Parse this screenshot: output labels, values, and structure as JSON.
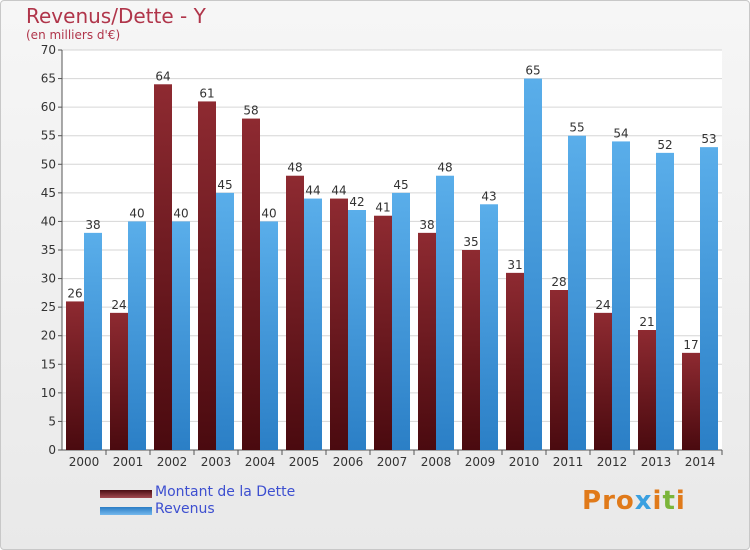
{
  "title": "Revenus/Dette - Y",
  "subtitle": "(en milliers d'€)",
  "legend": [
    {
      "label": "Montant de la Dette",
      "color": "#7a1f25"
    },
    {
      "label": "Revenus",
      "color": "#4a9fe0"
    }
  ],
  "logo": {
    "text": "Proxiti",
    "colors": [
      "#e07a1a",
      "#e07a1a",
      "#e07a1a",
      "#3aa0e0",
      "#e07a1a",
      "#7bb53a",
      "#e07a1a"
    ]
  },
  "chart_data": {
    "type": "bar",
    "title": "Revenus/Dette - Y",
    "subtitle": "(en milliers d'€)",
    "categories": [
      "2000",
      "2001",
      "2002",
      "2003",
      "2004",
      "2005",
      "2006",
      "2007",
      "2008",
      "2009",
      "2010",
      "2011",
      "2012",
      "2013",
      "2014"
    ],
    "series": [
      {
        "name": "Montant de la Dette",
        "color": "#7a1f25",
        "values": [
          26,
          24,
          64,
          61,
          58,
          48,
          44,
          41,
          38,
          35,
          31,
          28,
          24,
          21,
          17
        ]
      },
      {
        "name": "Revenus",
        "color": "#4a9fe0",
        "values": [
          38,
          40,
          40,
          45,
          40,
          44,
          42,
          45,
          48,
          43,
          65,
          55,
          54,
          52,
          53
        ]
      }
    ],
    "ylim": [
      0,
      70
    ],
    "yticks": [
      "0",
      "5",
      "10",
      "15",
      "20",
      "25",
      "30",
      "35",
      "40",
      "45",
      "50",
      "55",
      "60",
      "65",
      "70"
    ],
    "grid": true,
    "legend_position": "bottom-left"
  }
}
